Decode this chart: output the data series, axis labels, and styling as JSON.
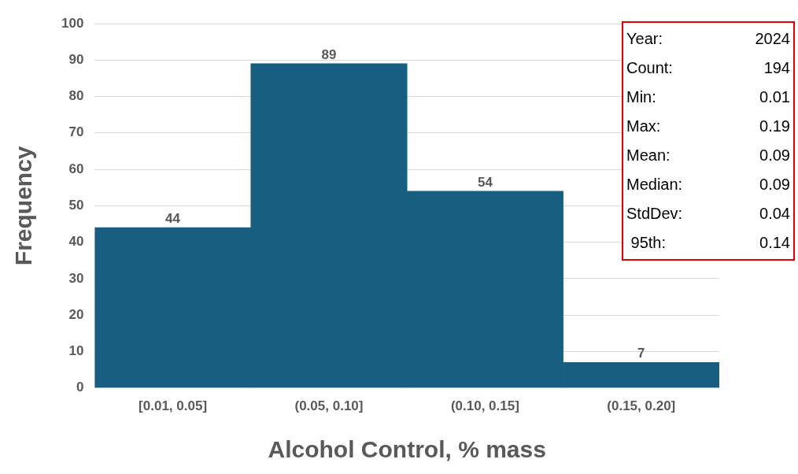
{
  "chart_data": {
    "type": "bar",
    "xlabel": "Alcohol Control, % mass",
    "ylabel": "Frequency",
    "categories": [
      "[0.01, 0.05]",
      "(0.05, 0.10]",
      "(0.10, 0.15]",
      "(0.15, 0.20]"
    ],
    "values": [
      44,
      89,
      54,
      7
    ],
    "color": "#175e80",
    "ylim": [
      0,
      100
    ],
    "yticks": [
      0,
      10,
      20,
      30,
      40,
      50,
      60,
      70,
      80,
      90,
      100
    ],
    "grid": "y",
    "legend": false,
    "data_labels": true,
    "annotations": [
      "Year:",
      "2024",
      "Count:",
      "194",
      "Min:",
      "0.01",
      "Max:",
      "0.19",
      "Mean:",
      "0.09",
      "Median:",
      "0.09",
      "StdDev:",
      "0.04",
      " 95th:",
      "0.14"
    ]
  }
}
